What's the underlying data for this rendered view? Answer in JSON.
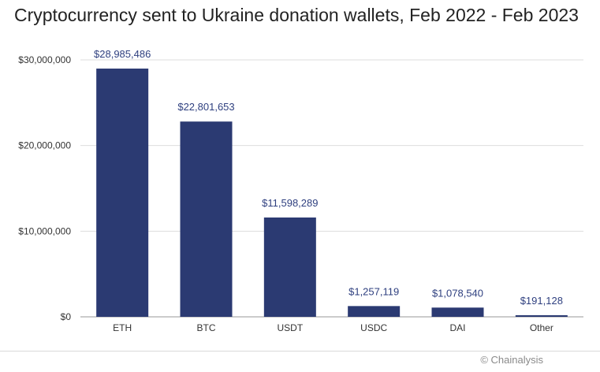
{
  "chart_data": {
    "type": "bar",
    "title": "Cryptocurrency sent to Ukraine donation wallets, Feb 2022 - Feb 2023",
    "xlabel": "",
    "ylabel": "",
    "categories": [
      "ETH",
      "BTC",
      "USDT",
      "USDC",
      "DAI",
      "Other"
    ],
    "values": [
      28985486,
      22801653,
      11598289,
      1257119,
      1078540,
      191128
    ],
    "data_labels": [
      "$28,985,486",
      "$22,801,653",
      "$11,598,289",
      "$1,257,119",
      "$1,078,540",
      "$191,128"
    ],
    "yticks": [
      0,
      10000000,
      20000000,
      30000000
    ],
    "ytick_labels": [
      "$0",
      "$10,000,000",
      "$20,000,000",
      "$30,000,000"
    ],
    "ylim": [
      0,
      30000000
    ],
    "grid": true,
    "bar_color": "#2b3a72",
    "label_color": "#2e3f7f"
  },
  "source": "© Chainalysis"
}
